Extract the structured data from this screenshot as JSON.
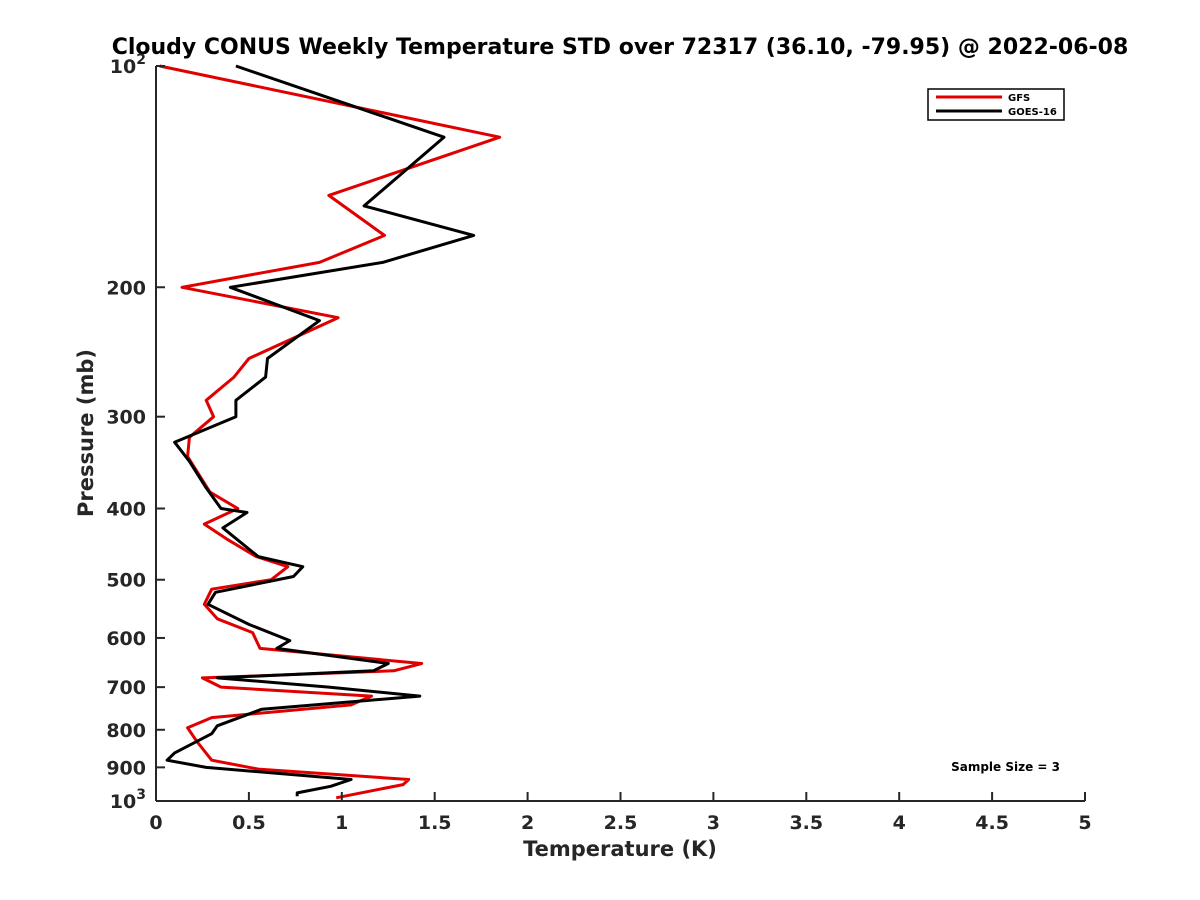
{
  "chart_data": {
    "type": "line",
    "title": "Cloudy CONUS Weekly Temperature STD over 72317 (36.10, -79.95) @ 2022-06-08",
    "xlabel": "Temperature (K)",
    "ylabel": "Pressure (mb)",
    "xlim": [
      0,
      5
    ],
    "ylim": [
      100,
      1000
    ],
    "y_scale": "log",
    "y_reversed": true,
    "grid": false,
    "legend_position": "top-right",
    "x_ticks": [
      {
        "value": 0,
        "label": "0"
      },
      {
        "value": 0.5,
        "label": "0.5"
      },
      {
        "value": 1,
        "label": "1"
      },
      {
        "value": 1.5,
        "label": "1.5"
      },
      {
        "value": 2,
        "label": "2"
      },
      {
        "value": 2.5,
        "label": "2.5"
      },
      {
        "value": 3,
        "label": "3"
      },
      {
        "value": 3.5,
        "label": "3.5"
      },
      {
        "value": 4,
        "label": "4"
      },
      {
        "value": 4.5,
        "label": "4.5"
      },
      {
        "value": 5,
        "label": "5"
      }
    ],
    "y_ticks": [
      {
        "value": 100,
        "label": "10",
        "sup": "2"
      },
      {
        "value": 200,
        "label": "200",
        "sup": ""
      },
      {
        "value": 300,
        "label": "300",
        "sup": ""
      },
      {
        "value": 400,
        "label": "400",
        "sup": ""
      },
      {
        "value": 500,
        "label": "500",
        "sup": ""
      },
      {
        "value": 600,
        "label": "600",
        "sup": ""
      },
      {
        "value": 700,
        "label": "700",
        "sup": ""
      },
      {
        "value": 800,
        "label": "800",
        "sup": ""
      },
      {
        "value": 900,
        "label": "900",
        "sup": ""
      },
      {
        "value": 1000,
        "label": "10",
        "sup": "3"
      }
    ],
    "series": [
      {
        "name": "GFS",
        "color": "#e00000",
        "points": [
          {
            "x": 0.02,
            "p": 100
          },
          {
            "x": 1.85,
            "p": 125
          },
          {
            "x": 0.93,
            "p": 150
          },
          {
            "x": 1.23,
            "p": 170
          },
          {
            "x": 0.88,
            "p": 185
          },
          {
            "x": 0.14,
            "p": 200
          },
          {
            "x": 0.98,
            "p": 220
          },
          {
            "x": 0.5,
            "p": 250
          },
          {
            "x": 0.42,
            "p": 265
          },
          {
            "x": 0.27,
            "p": 285
          },
          {
            "x": 0.31,
            "p": 300
          },
          {
            "x": 0.18,
            "p": 320
          },
          {
            "x": 0.17,
            "p": 340
          },
          {
            "x": 0.29,
            "p": 380
          },
          {
            "x": 0.44,
            "p": 400
          },
          {
            "x": 0.26,
            "p": 420
          },
          {
            "x": 0.38,
            "p": 440
          },
          {
            "x": 0.54,
            "p": 465
          },
          {
            "x": 0.71,
            "p": 480
          },
          {
            "x": 0.62,
            "p": 500
          },
          {
            "x": 0.3,
            "p": 515
          },
          {
            "x": 0.26,
            "p": 540
          },
          {
            "x": 0.33,
            "p": 565
          },
          {
            "x": 0.52,
            "p": 590
          },
          {
            "x": 0.56,
            "p": 620
          },
          {
            "x": 1.43,
            "p": 650
          },
          {
            "x": 1.28,
            "p": 665
          },
          {
            "x": 0.25,
            "p": 680
          },
          {
            "x": 0.35,
            "p": 700
          },
          {
            "x": 1.16,
            "p": 720
          },
          {
            "x": 1.05,
            "p": 740
          },
          {
            "x": 0.3,
            "p": 770
          },
          {
            "x": 0.17,
            "p": 795
          },
          {
            "x": 0.22,
            "p": 830
          },
          {
            "x": 0.3,
            "p": 880
          },
          {
            "x": 0.55,
            "p": 905
          },
          {
            "x": 1.36,
            "p": 935
          },
          {
            "x": 1.33,
            "p": 950
          },
          {
            "x": 0.97,
            "p": 990
          }
        ]
      },
      {
        "name": "GOES-16",
        "color": "#000000",
        "points": [
          {
            "x": 0.43,
            "p": 100
          },
          {
            "x": 1.55,
            "p": 125
          },
          {
            "x": 1.12,
            "p": 155
          },
          {
            "x": 1.71,
            "p": 170
          },
          {
            "x": 1.22,
            "p": 185
          },
          {
            "x": 0.4,
            "p": 200
          },
          {
            "x": 0.88,
            "p": 222
          },
          {
            "x": 0.6,
            "p": 250
          },
          {
            "x": 0.59,
            "p": 265
          },
          {
            "x": 0.43,
            "p": 285
          },
          {
            "x": 0.43,
            "p": 300
          },
          {
            "x": 0.1,
            "p": 325
          },
          {
            "x": 0.18,
            "p": 345
          },
          {
            "x": 0.27,
            "p": 375
          },
          {
            "x": 0.35,
            "p": 400
          },
          {
            "x": 0.49,
            "p": 405
          },
          {
            "x": 0.36,
            "p": 425
          },
          {
            "x": 0.55,
            "p": 465
          },
          {
            "x": 0.79,
            "p": 480
          },
          {
            "x": 0.74,
            "p": 495
          },
          {
            "x": 0.32,
            "p": 520
          },
          {
            "x": 0.28,
            "p": 540
          },
          {
            "x": 0.5,
            "p": 575
          },
          {
            "x": 0.72,
            "p": 605
          },
          {
            "x": 0.65,
            "p": 620
          },
          {
            "x": 1.25,
            "p": 650
          },
          {
            "x": 1.17,
            "p": 665
          },
          {
            "x": 0.33,
            "p": 680
          },
          {
            "x": 0.93,
            "p": 700
          },
          {
            "x": 1.42,
            "p": 720
          },
          {
            "x": 0.57,
            "p": 750
          },
          {
            "x": 0.33,
            "p": 790
          },
          {
            "x": 0.3,
            "p": 810
          },
          {
            "x": 0.1,
            "p": 860
          },
          {
            "x": 0.06,
            "p": 880
          },
          {
            "x": 0.27,
            "p": 900
          },
          {
            "x": 1.05,
            "p": 935
          },
          {
            "x": 0.94,
            "p": 955
          },
          {
            "x": 0.76,
            "p": 975
          },
          {
            "x": 0.76,
            "p": 985
          }
        ]
      }
    ],
    "annotation": "Sample Size = 3"
  }
}
